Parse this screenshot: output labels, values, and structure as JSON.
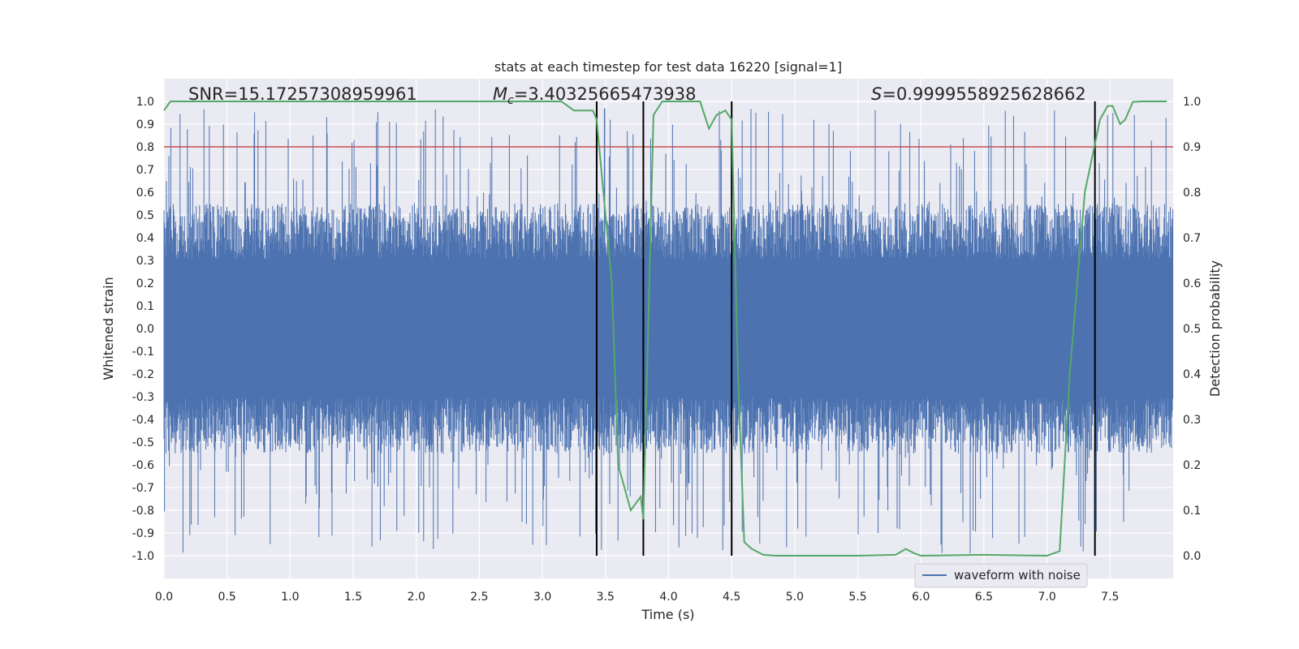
{
  "chart_data": {
    "type": "line",
    "title": "stats at each timestep for test data 16220 [signal=1]",
    "xlabel": "Time (s)",
    "ylabel": "Whitened strain",
    "y2label": "Detection probability",
    "xlim": [
      0.0,
      8.0
    ],
    "ylim": [
      -1.1,
      1.1
    ],
    "y2lim": [
      -0.05,
      1.05
    ],
    "xticks": [
      "0.0",
      "0.5",
      "1.0",
      "1.5",
      "2.0",
      "2.5",
      "3.0",
      "3.5",
      "4.0",
      "4.5",
      "5.0",
      "5.5",
      "6.0",
      "6.5",
      "7.0",
      "7.5"
    ],
    "yticks": [
      "1.0",
      "0.9",
      "0.8",
      "0.7",
      "0.6",
      "0.5",
      "0.4",
      "0.3",
      "0.2",
      "0.1",
      "0.0",
      "-0.1",
      "-0.2",
      "-0.3",
      "-0.4",
      "-0.5",
      "-0.6",
      "-0.7",
      "-0.8",
      "-0.9",
      "-1.0"
    ],
    "y2ticks": [
      "1.0",
      "0.9",
      "0.8",
      "0.7",
      "0.6",
      "0.5",
      "0.4",
      "0.3",
      "0.2",
      "0.1",
      "0.0"
    ],
    "grid": true,
    "annotations": {
      "snr": "SNR=15.17257308959961",
      "mc_symbol": "M",
      "mc_sub": "c",
      "mc_value": "=3.40325665473938",
      "s_symbol": "S",
      "s_value": "=0.9999558925628662"
    },
    "legend": {
      "label": "waveform with noise",
      "position": "lower-right"
    },
    "threshold": {
      "y2": 0.9,
      "color": "#c44e52"
    },
    "event_markers_x": [
      3.43,
      3.8,
      4.5,
      7.38
    ],
    "series": [
      {
        "name": "waveform with noise",
        "color": "#4c72b0",
        "type": "noise",
        "envelope_typical": 0.55,
        "envelope_max": 0.99
      },
      {
        "name": "Detection probability",
        "color": "#55a868",
        "x": [
          0.0,
          0.05,
          0.1,
          0.2,
          0.5,
          1.0,
          1.5,
          2.0,
          2.5,
          3.0,
          3.15,
          3.25,
          3.4,
          3.43,
          3.55,
          3.6,
          3.7,
          3.78,
          3.8,
          3.85,
          3.88,
          3.95,
          4.0,
          4.15,
          4.25,
          4.32,
          4.38,
          4.45,
          4.5,
          4.55,
          4.6,
          4.66,
          4.75,
          4.85,
          5.0,
          5.5,
          5.8,
          5.88,
          5.95,
          6.0,
          6.5,
          7.0,
          7.1,
          7.18,
          7.3,
          7.42,
          7.48,
          7.52,
          7.58,
          7.62,
          7.68,
          7.75,
          7.8,
          7.95
        ],
        "values": [
          0.98,
          1.0,
          1.0,
          1.0,
          1.0,
          1.0,
          1.0,
          1.0,
          1.0,
          1.0,
          1.0,
          0.98,
          0.98,
          0.96,
          0.6,
          0.2,
          0.1,
          0.13,
          0.08,
          0.63,
          0.97,
          1.0,
          1.0,
          1.0,
          1.0,
          0.94,
          0.97,
          0.98,
          0.96,
          0.4,
          0.03,
          0.015,
          0.002,
          0.0,
          0.0,
          0.0,
          0.002,
          0.015,
          0.005,
          0.0,
          0.002,
          0.0,
          0.01,
          0.4,
          0.8,
          0.96,
          0.99,
          0.99,
          0.95,
          0.96,
          0.999,
          1.0,
          1.0,
          1.0
        ]
      }
    ]
  }
}
